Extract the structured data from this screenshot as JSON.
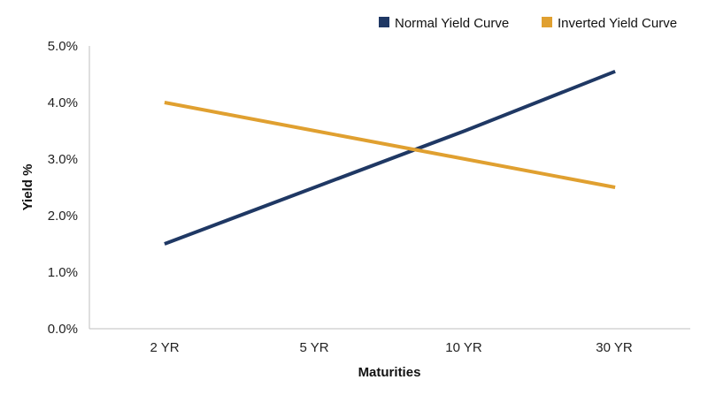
{
  "chart_data": {
    "type": "line",
    "title": "",
    "xlabel": "Maturities",
    "ylabel": "Yield %",
    "categories": [
      "2 YR",
      "5 YR",
      "10 YR",
      "30 YR"
    ],
    "ylim": [
      0,
      5
    ],
    "yticks": [
      "0.0%",
      "1.0%",
      "2.0%",
      "3.0%",
      "4.0%",
      "5.0%"
    ],
    "grid": false,
    "legend_position": "top-right",
    "series": [
      {
        "name": "Normal Yield Curve",
        "color": "#1f3864",
        "values": [
          1.5,
          2.5,
          3.5,
          4.55
        ]
      },
      {
        "name": "Inverted Yield Curve",
        "color": "#e0a030",
        "values": [
          4.0,
          3.5,
          3.0,
          2.5
        ]
      }
    ]
  }
}
